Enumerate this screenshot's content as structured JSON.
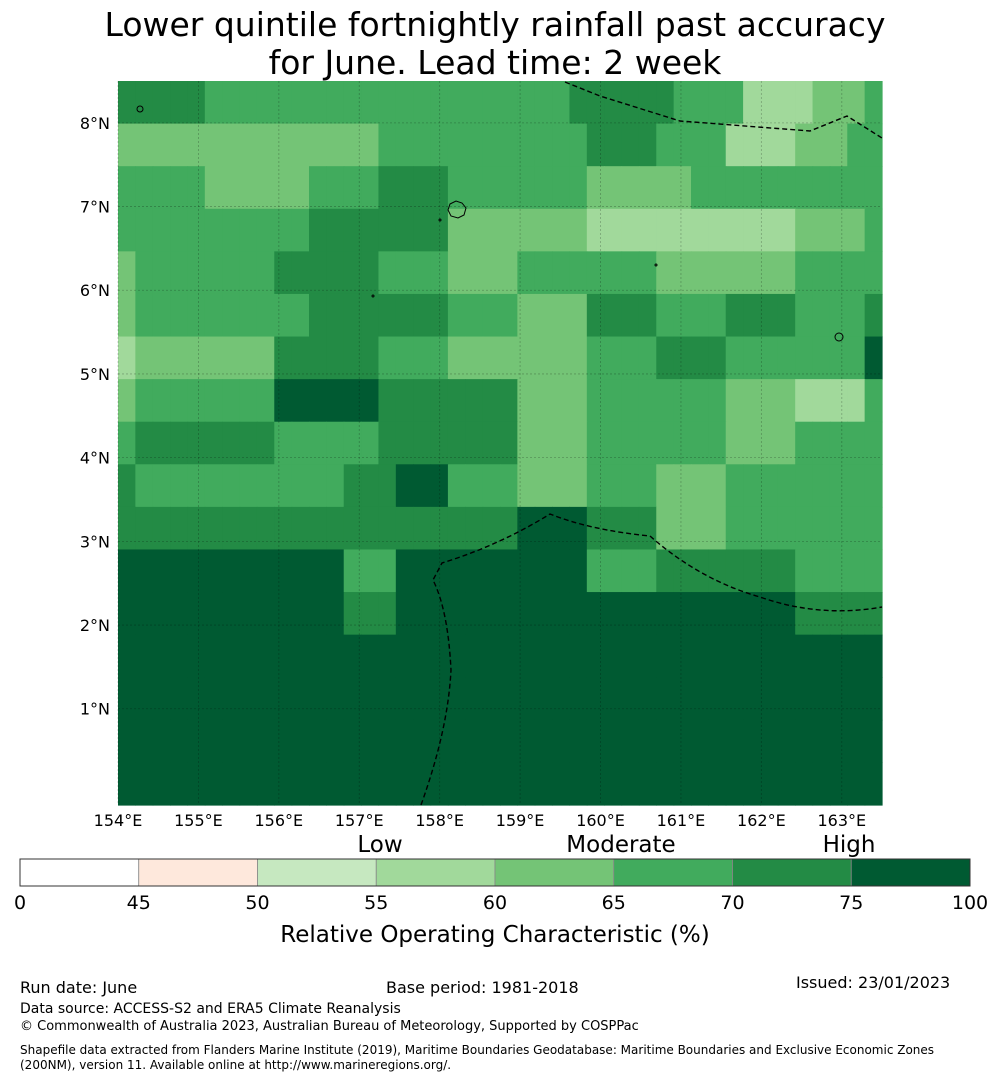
{
  "title": {
    "line1": "Lower quintile fortnightly rainfall past accuracy",
    "line2": "for June. Lead time: 2 week"
  },
  "map": {
    "lat_ticks": [
      "8°N",
      "7°N",
      "6°N",
      "5°N",
      "4°N",
      "3°N",
      "2°N",
      "1°N"
    ],
    "lon_ticks": [
      "154°E",
      "155°E",
      "156°E",
      "157°E",
      "158°E",
      "159°E",
      "160°E",
      "161°E",
      "162°E",
      "163°E"
    ],
    "lon_range": [
      154,
      163.5
    ],
    "lat_range": [
      -0.15,
      8.5
    ]
  },
  "colorbar": {
    "ticks": [
      "0",
      "45",
      "50",
      "55",
      "60",
      "65",
      "70",
      "75",
      "100"
    ],
    "categories": [
      "Low",
      "Moderate",
      "High"
    ],
    "label": "Relative Operating Characteristic (%)",
    "colors": [
      "#ffffff",
      "#fee8dc",
      "#c6e8c0",
      "#a1d99b",
      "#74c476",
      "#41ab5d",
      "#238b45",
      "#005a32"
    ]
  },
  "footer": {
    "run_date": "Run date: June",
    "base_period": "Base period: 1981-2018",
    "issued": "Issued: 23/01/2023",
    "data_source": "Data source: ACCESS-S2 and ERA5 Climate Reanalysis",
    "copyright": "© Commonwealth of Australia 2023, Australian Bureau of Meteorology, Supported by COSPPac",
    "shapefile": "Shapefile data extracted from Flanders Marine Institute (2019), Maritime Boundaries Geodatabase: Maritime Boundaries and Exclusive Economic Zones (200NM), version 11. Available online at http://www.marineregions.org/."
  },
  "grid_data": {
    "description_levels": "class index 0-7 matching colorbar colors",
    "rows": [
      [
        6,
        6,
        6,
        6,
        6,
        5,
        5,
        5,
        5,
        5,
        5,
        5,
        5,
        5,
        5,
        5,
        5,
        5,
        5,
        5,
        5,
        5,
        5,
        5,
        5,
        5,
        6,
        6,
        6,
        6,
        6,
        6,
        5,
        5,
        5,
        5,
        3,
        3,
        3,
        3,
        4,
        4,
        4,
        5
      ],
      [
        4,
        4,
        4,
        4,
        4,
        4,
        4,
        4,
        4,
        4,
        4,
        4,
        4,
        4,
        4,
        5,
        5,
        5,
        5,
        5,
        5,
        5,
        5,
        5,
        5,
        5,
        5,
        6,
        6,
        6,
        6,
        5,
        5,
        5,
        5,
        3,
        3,
        3,
        3,
        4,
        4,
        4,
        5,
        5
      ],
      [
        5,
        5,
        5,
        5,
        5,
        4,
        4,
        4,
        4,
        4,
        4,
        5,
        5,
        5,
        5,
        6,
        6,
        6,
        6,
        5,
        5,
        5,
        5,
        5,
        5,
        5,
        5,
        4,
        4,
        4,
        4,
        4,
        4,
        5,
        5,
        5,
        5,
        5,
        5,
        5,
        5,
        5,
        5,
        5
      ],
      [
        5,
        5,
        5,
        5,
        5,
        5,
        5,
        5,
        5,
        5,
        5,
        6,
        6,
        6,
        6,
        6,
        6,
        6,
        6,
        4,
        4,
        4,
        4,
        4,
        4,
        4,
        4,
        3,
        3,
        3,
        3,
        3,
        3,
        3,
        3,
        3,
        3,
        3,
        3,
        4,
        4,
        4,
        4,
        5
      ],
      [
        4,
        5,
        5,
        5,
        5,
        5,
        5,
        5,
        5,
        6,
        6,
        6,
        6,
        6,
        6,
        5,
        5,
        5,
        5,
        4,
        4,
        4,
        4,
        5,
        5,
        5,
        5,
        5,
        5,
        5,
        5,
        4,
        4,
        4,
        4,
        4,
        4,
        4,
        4,
        5,
        5,
        5,
        5,
        5
      ],
      [
        4,
        5,
        5,
        5,
        5,
        5,
        5,
        5,
        5,
        5,
        5,
        6,
        6,
        6,
        6,
        6,
        6,
        6,
        6,
        5,
        5,
        5,
        5,
        4,
        4,
        4,
        4,
        6,
        6,
        6,
        6,
        5,
        5,
        5,
        5,
        6,
        6,
        6,
        6,
        5,
        5,
        5,
        5,
        6
      ],
      [
        3,
        4,
        4,
        4,
        4,
        4,
        4,
        4,
        4,
        6,
        6,
        6,
        6,
        6,
        6,
        5,
        5,
        5,
        5,
        4,
        4,
        4,
        4,
        4,
        4,
        4,
        4,
        5,
        5,
        5,
        5,
        6,
        6,
        6,
        6,
        5,
        5,
        5,
        5,
        5,
        5,
        5,
        5,
        7
      ],
      [
        4,
        5,
        5,
        5,
        5,
        5,
        5,
        5,
        5,
        7,
        7,
        7,
        7,
        7,
        7,
        6,
        6,
        6,
        6,
        6,
        6,
        6,
        6,
        4,
        4,
        4,
        4,
        5,
        5,
        5,
        5,
        5,
        5,
        5,
        5,
        4,
        4,
        4,
        4,
        3,
        3,
        3,
        3,
        5
      ],
      [
        5,
        6,
        6,
        6,
        6,
        6,
        6,
        6,
        6,
        5,
        5,
        5,
        5,
        5,
        5,
        6,
        6,
        6,
        6,
        6,
        6,
        6,
        6,
        4,
        4,
        4,
        4,
        5,
        5,
        5,
        5,
        5,
        5,
        5,
        5,
        4,
        4,
        4,
        4,
        5,
        5,
        5,
        5,
        5
      ],
      [
        6,
        5,
        5,
        5,
        5,
        5,
        5,
        5,
        5,
        5,
        5,
        5,
        5,
        6,
        6,
        6,
        7,
        7,
        7,
        5,
        5,
        5,
        5,
        4,
        4,
        4,
        4,
        5,
        5,
        5,
        5,
        4,
        4,
        4,
        4,
        5,
        5,
        5,
        5,
        5,
        5,
        5,
        5,
        5
      ],
      [
        6,
        6,
        6,
        6,
        6,
        6,
        6,
        6,
        6,
        6,
        6,
        6,
        6,
        6,
        6,
        6,
        6,
        6,
        6,
        6,
        6,
        6,
        6,
        7,
        7,
        7,
        7,
        6,
        6,
        6,
        6,
        4,
        4,
        4,
        4,
        5,
        5,
        5,
        5,
        5,
        5,
        5,
        5,
        5
      ],
      [
        7,
        7,
        7,
        7,
        7,
        7,
        7,
        7,
        7,
        7,
        7,
        7,
        7,
        5,
        5,
        5,
        7,
        7,
        7,
        7,
        7,
        7,
        7,
        7,
        7,
        7,
        7,
        5,
        5,
        5,
        5,
        6,
        6,
        6,
        6,
        6,
        6,
        6,
        6,
        5,
        5,
        5,
        5,
        5
      ],
      [
        7,
        7,
        7,
        7,
        7,
        7,
        7,
        7,
        7,
        7,
        7,
        7,
        7,
        6,
        6,
        6,
        7,
        7,
        7,
        7,
        7,
        7,
        7,
        7,
        7,
        7,
        7,
        7,
        7,
        7,
        7,
        7,
        7,
        7,
        7,
        7,
        7,
        7,
        7,
        6,
        6,
        6,
        6,
        6
      ],
      [
        7,
        7,
        7,
        7,
        7,
        7,
        7,
        7,
        7,
        7,
        7,
        7,
        7,
        7,
        7,
        7,
        7,
        7,
        7,
        7,
        7,
        7,
        7,
        7,
        7,
        7,
        7,
        7,
        7,
        7,
        7,
        7,
        7,
        7,
        7,
        7,
        7,
        7,
        7,
        7,
        7,
        7,
        7,
        7
      ],
      [
        7,
        7,
        7,
        7,
        7,
        7,
        7,
        7,
        7,
        7,
        7,
        7,
        7,
        7,
        7,
        7,
        7,
        7,
        7,
        7,
        7,
        7,
        7,
        7,
        7,
        7,
        7,
        7,
        7,
        7,
        7,
        7,
        7,
        7,
        7,
        7,
        7,
        7,
        7,
        7,
        7,
        7,
        7,
        7
      ],
      [
        7,
        7,
        7,
        7,
        7,
        7,
        7,
        7,
        7,
        7,
        7,
        7,
        7,
        7,
        7,
        7,
        7,
        7,
        7,
        7,
        7,
        7,
        7,
        7,
        7,
        7,
        7,
        7,
        7,
        7,
        7,
        7,
        7,
        7,
        7,
        7,
        7,
        7,
        7,
        7,
        7,
        7,
        7,
        7
      ],
      [
        7,
        7,
        7,
        7,
        7,
        7,
        7,
        7,
        7,
        7,
        7,
        7,
        7,
        7,
        7,
        7,
        7,
        7,
        7,
        7,
        7,
        7,
        7,
        7,
        7,
        7,
        7,
        7,
        7,
        7,
        7,
        7,
        7,
        7,
        7,
        7,
        7,
        7,
        7,
        7,
        7,
        7,
        7,
        7
      ]
    ]
  }
}
